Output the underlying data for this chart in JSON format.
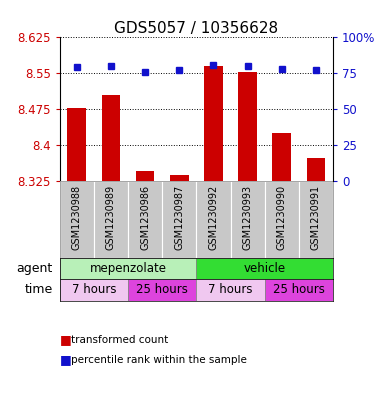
{
  "title": "GDS5057 / 10356628",
  "samples": [
    "GSM1230988",
    "GSM1230989",
    "GSM1230986",
    "GSM1230987",
    "GSM1230992",
    "GSM1230993",
    "GSM1230990",
    "GSM1230991"
  ],
  "bar_values": [
    8.478,
    8.505,
    8.345,
    8.338,
    8.565,
    8.553,
    8.425,
    8.372
  ],
  "percentile_values": [
    79,
    80,
    76,
    77,
    81,
    80,
    78,
    77
  ],
  "ylim_left": [
    8.325,
    8.625
  ],
  "ylim_right": [
    0,
    100
  ],
  "yticks_left": [
    8.325,
    8.4,
    8.475,
    8.55,
    8.625
  ],
  "yticks_right": [
    0,
    25,
    50,
    75,
    100
  ],
  "bar_color": "#cc0000",
  "dot_color": "#1111cc",
  "agent_groups": [
    {
      "label": "mepenzolate",
      "start": 0,
      "end": 4,
      "color": "#b8f0b8"
    },
    {
      "label": "vehicle",
      "start": 4,
      "end": 8,
      "color": "#33dd33"
    }
  ],
  "time_groups": [
    {
      "label": "7 hours",
      "start": 0,
      "end": 2,
      "color": "#f0c8f0"
    },
    {
      "label": "25 hours",
      "start": 2,
      "end": 4,
      "color": "#dd44dd"
    },
    {
      "label": "7 hours",
      "start": 4,
      "end": 6,
      "color": "#f0c8f0"
    },
    {
      "label": "25 hours",
      "start": 6,
      "end": 8,
      "color": "#dd44dd"
    }
  ],
  "legend_bar_label": "transformed count",
  "legend_dot_label": "percentile rank within the sample",
  "agent_label": "agent",
  "time_label": "time",
  "left_axis_color": "#cc0000",
  "right_axis_color": "#1111cc",
  "grid_color": "#000000",
  "sample_bg_color": "#c8c8c8",
  "title_fontsize": 11,
  "tick_fontsize": 8.5,
  "label_fontsize": 9,
  "bar_width": 0.55
}
